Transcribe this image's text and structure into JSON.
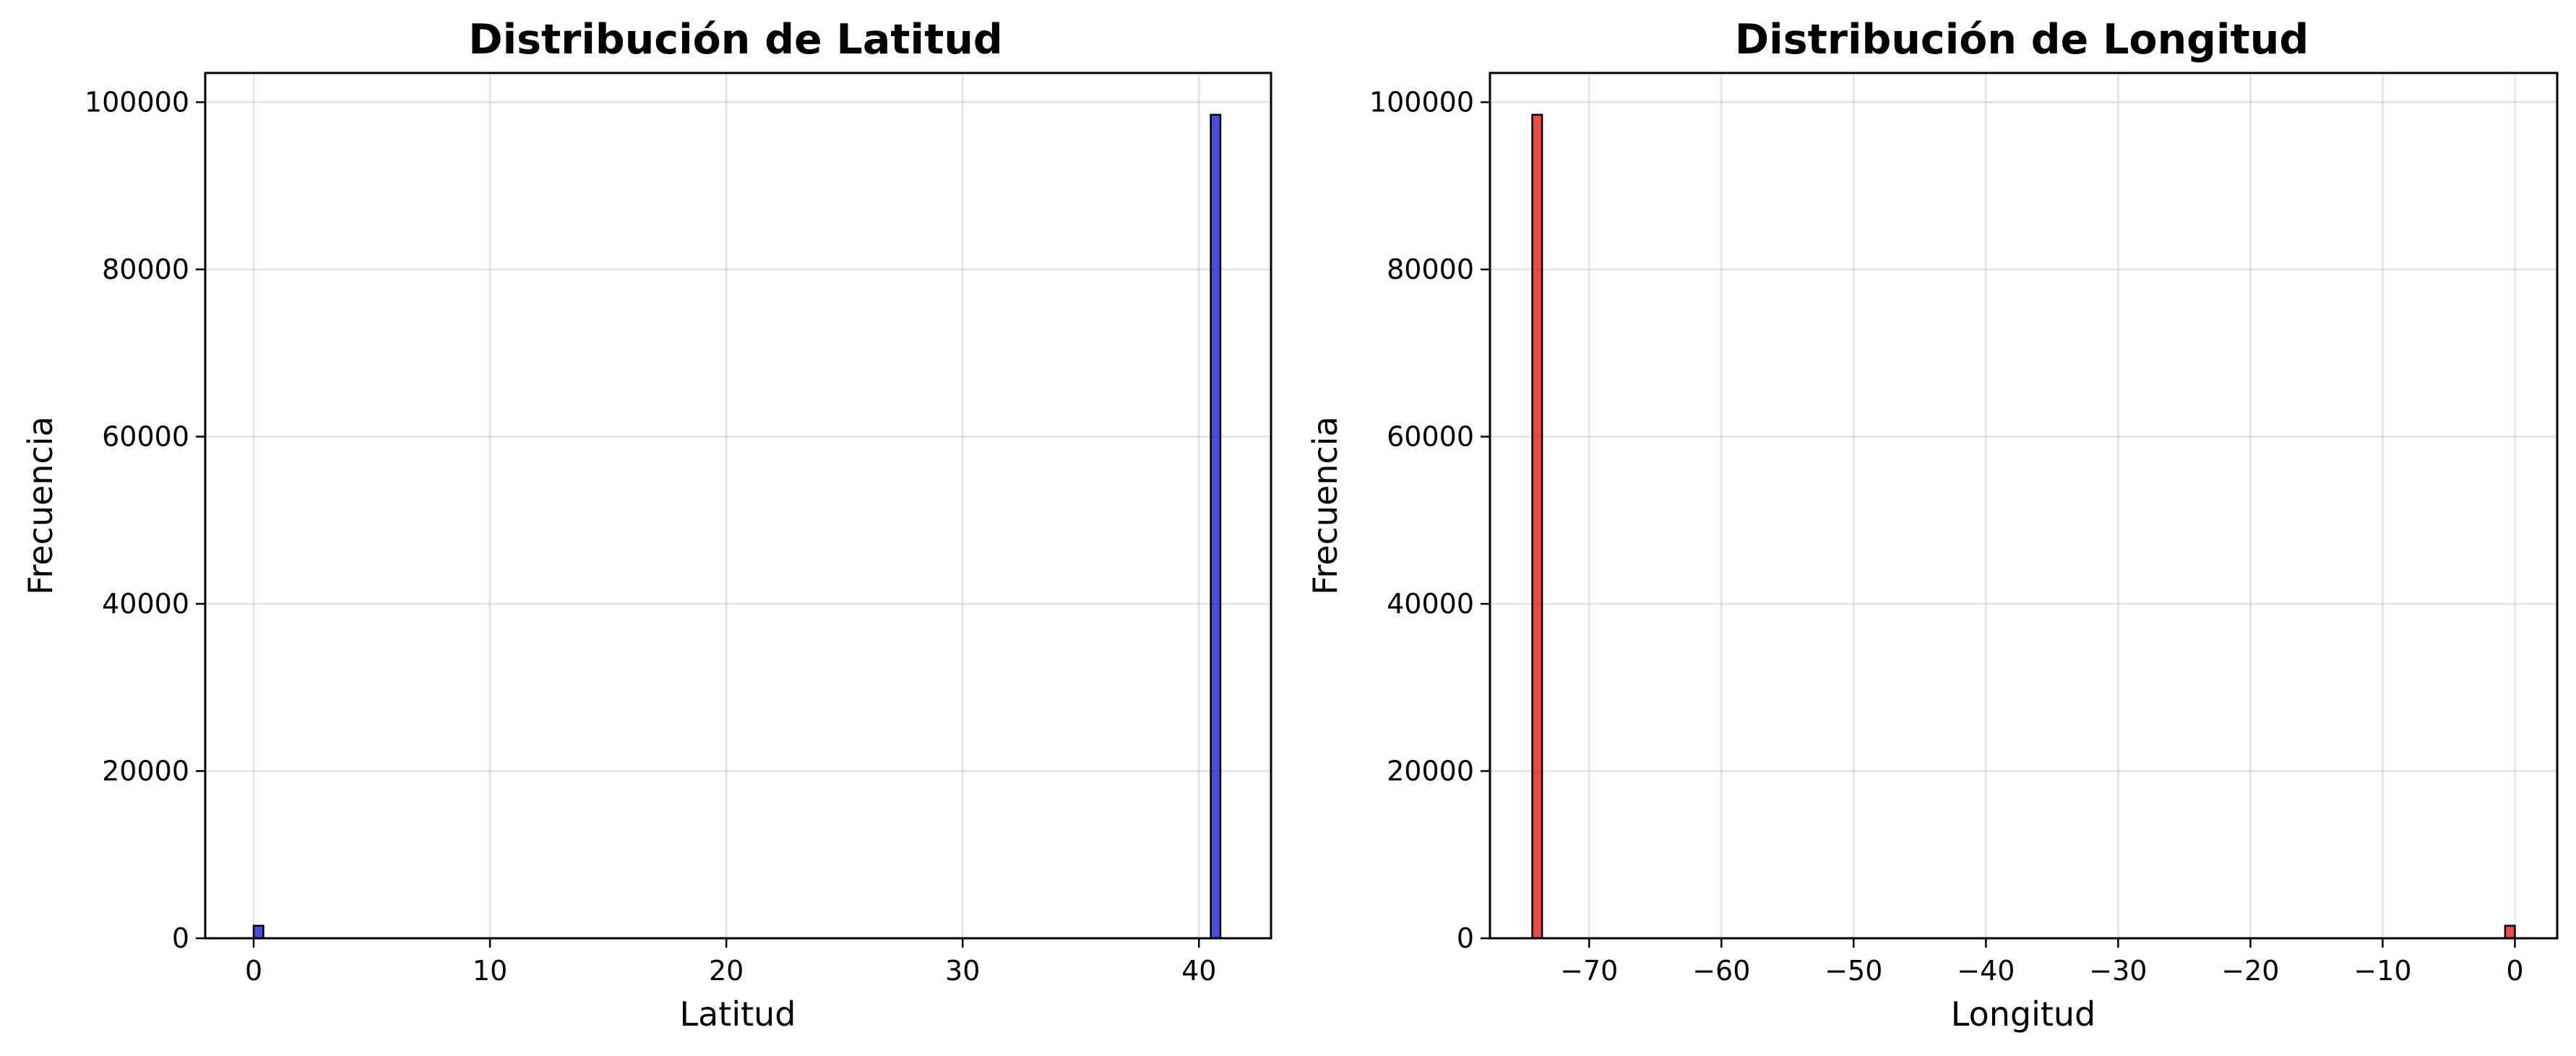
{
  "chart_data": [
    {
      "type": "bar",
      "title": "Distribución de Latitud",
      "xlabel": "Latitud",
      "ylabel": "Frecuencia",
      "xlim": [
        -2.05,
        43.05
      ],
      "ylim": [
        0,
        103500
      ],
      "xticks": [
        0,
        10,
        20,
        30,
        40
      ],
      "xtick_labels": [
        "0",
        "10",
        "20",
        "30",
        "40"
      ],
      "yticks": [
        0,
        20000,
        40000,
        60000,
        80000,
        100000
      ],
      "ytick_labels": [
        "0",
        "20000",
        "40000",
        "60000",
        "80000",
        "100000"
      ],
      "bin_width": 0.41,
      "x": [
        0.0,
        40.5
      ],
      "values": [
        1500,
        98500
      ],
      "color": "#0000cc",
      "bar_opacity": 0.7,
      "grid": true
    },
    {
      "type": "bar",
      "title": "Distribución de Longitud",
      "xlabel": "Longitud",
      "ylabel": "Frecuencia",
      "xlim": [
        -77.5,
        3.2
      ],
      "ylim": [
        0,
        103500
      ],
      "xticks": [
        -70,
        -60,
        -50,
        -40,
        -30,
        -20,
        -10,
        0
      ],
      "xtick_labels": [
        "−70",
        "−60",
        "−50",
        "−40",
        "−30",
        "−20",
        "−10",
        "0"
      ],
      "yticks": [
        0,
        20000,
        40000,
        60000,
        80000,
        100000
      ],
      "ytick_labels": [
        "0",
        "20000",
        "40000",
        "60000",
        "80000",
        "100000"
      ],
      "bin_width": 0.74,
      "x": [
        -74.3,
        -0.74
      ],
      "values": [
        98500,
        1500
      ],
      "color": "#dd0000",
      "bar_opacity": 0.7,
      "grid": true
    }
  ]
}
